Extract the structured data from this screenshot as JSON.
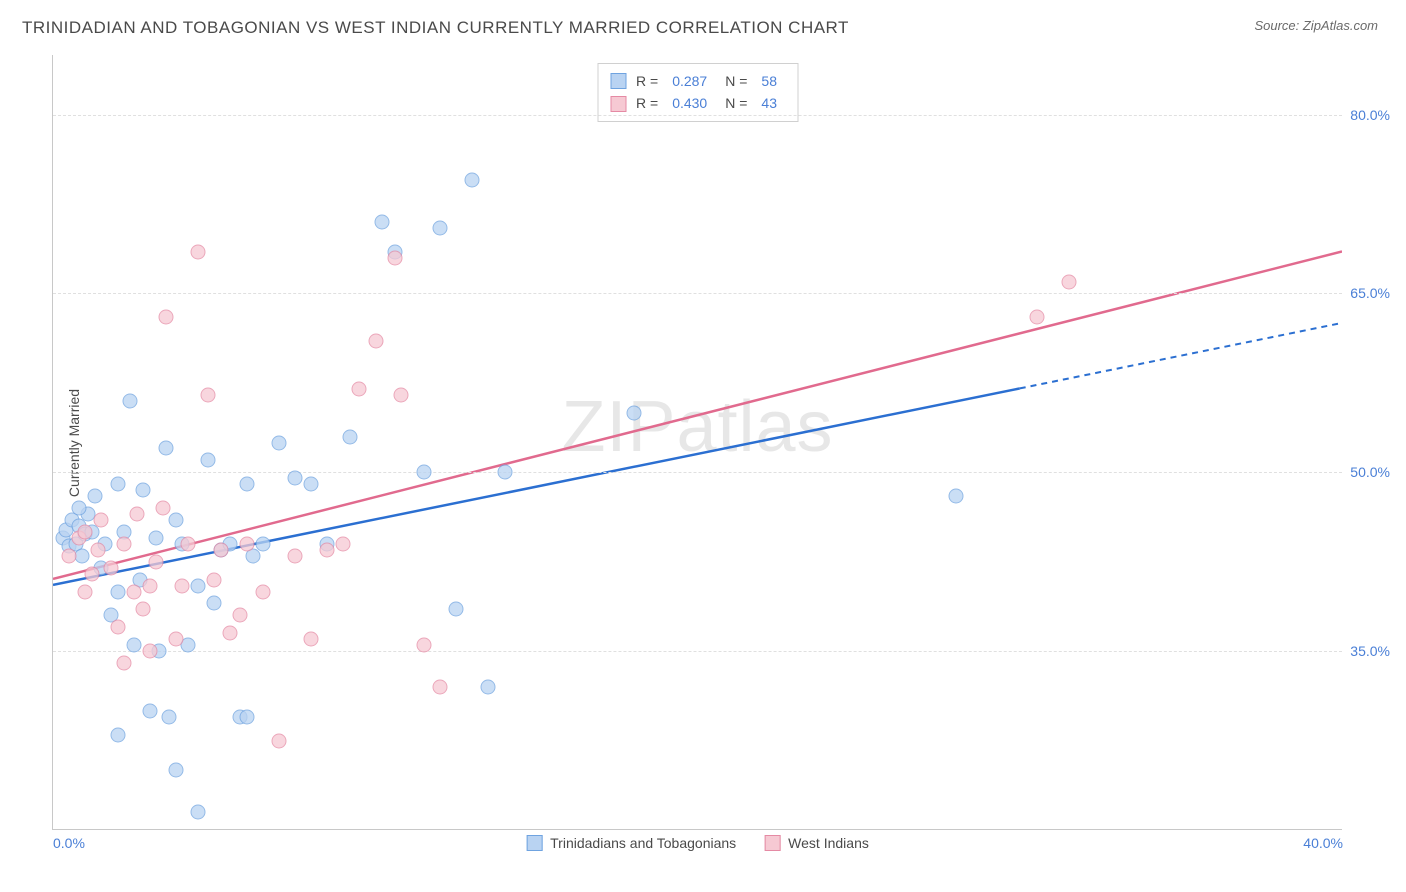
{
  "header": {
    "title": "TRINIDADIAN AND TOBAGONIAN VS WEST INDIAN CURRENTLY MARRIED CORRELATION CHART",
    "source": "Source: ZipAtlas.com"
  },
  "ylabel": "Currently Married",
  "watermark": "ZIPatlas",
  "chart": {
    "type": "scatter",
    "xlim": [
      0,
      40
    ],
    "ylim": [
      20,
      85
    ],
    "ytick_values": [
      35.0,
      50.0,
      65.0,
      80.0
    ],
    "ytick_labels": [
      "35.0%",
      "50.0%",
      "65.0%",
      "80.0%"
    ],
    "xtick_left": "0.0%",
    "xtick_right": "40.0%",
    "grid_color": "#e0e0e0",
    "background_color": "#ffffff",
    "axis_color": "#c8c8c8"
  },
  "series": [
    {
      "name": "Trinidadians and Tobagonians",
      "fill": "#b9d3f2",
      "stroke": "#6fa3e0",
      "line_color": "#2b6fd1",
      "r": 0.287,
      "n": 58,
      "trend": {
        "x1": 0,
        "y1": 40.5,
        "x2": 30,
        "y2": 57.0,
        "dash_x2": 40,
        "dash_y2": 62.5
      },
      "points": [
        [
          0.3,
          44.5
        ],
        [
          0.4,
          45.2
        ],
        [
          0.5,
          43.8
        ],
        [
          0.6,
          46.0
        ],
        [
          0.7,
          44.0
        ],
        [
          0.8,
          45.5
        ],
        [
          0.9,
          43.0
        ],
        [
          1.0,
          44.8
        ],
        [
          1.1,
          46.5
        ],
        [
          1.2,
          45.0
        ],
        [
          1.3,
          48.0
        ],
        [
          1.5,
          42.0
        ],
        [
          1.6,
          44.0
        ],
        [
          1.8,
          38.0
        ],
        [
          2.0,
          49.0
        ],
        [
          2.0,
          40.0
        ],
        [
          2.2,
          45.0
        ],
        [
          2.4,
          56.0
        ],
        [
          2.5,
          35.5
        ],
        [
          2.7,
          41.0
        ],
        [
          2.8,
          48.5
        ],
        [
          3.0,
          30.0
        ],
        [
          3.2,
          44.5
        ],
        [
          3.3,
          35.0
        ],
        [
          3.5,
          52.0
        ],
        [
          3.6,
          29.5
        ],
        [
          3.8,
          46.0
        ],
        [
          4.0,
          44.0
        ],
        [
          4.2,
          35.5
        ],
        [
          4.5,
          40.5
        ],
        [
          4.8,
          51.0
        ],
        [
          5.0,
          39.0
        ],
        [
          5.2,
          43.5
        ],
        [
          5.5,
          44.0
        ],
        [
          5.8,
          29.5
        ],
        [
          6.0,
          49.0
        ],
        [
          6.0,
          29.5
        ],
        [
          6.2,
          43.0
        ],
        [
          6.5,
          44.0
        ],
        [
          7.0,
          52.5
        ],
        [
          7.5,
          49.5
        ],
        [
          8.0,
          49.0
        ],
        [
          8.5,
          44.0
        ],
        [
          9.2,
          53.0
        ],
        [
          10.2,
          71.0
        ],
        [
          10.6,
          68.5
        ],
        [
          11.5,
          50.0
        ],
        [
          12.0,
          70.5
        ],
        [
          12.5,
          38.5
        ],
        [
          13.0,
          74.5
        ],
        [
          13.5,
          32.0
        ],
        [
          14.0,
          50.0
        ],
        [
          18.0,
          55.0
        ],
        [
          3.8,
          25.0
        ],
        [
          2.0,
          28.0
        ],
        [
          4.5,
          21.5
        ],
        [
          28.0,
          48.0
        ],
        [
          0.8,
          47.0
        ]
      ]
    },
    {
      "name": "West Indians",
      "fill": "#f6c9d3",
      "stroke": "#e58aa4",
      "line_color": "#e16a8e",
      "r": 0.43,
      "n": 43,
      "trend": {
        "x1": 0,
        "y1": 41.0,
        "x2": 40,
        "y2": 68.5
      },
      "points": [
        [
          0.5,
          43.0
        ],
        [
          0.8,
          44.5
        ],
        [
          1.0,
          45.0
        ],
        [
          1.2,
          41.5
        ],
        [
          1.4,
          43.5
        ],
        [
          1.5,
          46.0
        ],
        [
          1.8,
          42.0
        ],
        [
          2.0,
          37.0
        ],
        [
          2.2,
          44.0
        ],
        [
          2.5,
          40.0
        ],
        [
          2.6,
          46.5
        ],
        [
          2.8,
          38.5
        ],
        [
          3.0,
          35.0
        ],
        [
          3.2,
          42.5
        ],
        [
          3.4,
          47.0
        ],
        [
          3.5,
          63.0
        ],
        [
          3.8,
          36.0
        ],
        [
          4.0,
          40.5
        ],
        [
          4.2,
          44.0
        ],
        [
          4.5,
          68.5
        ],
        [
          4.8,
          56.5
        ],
        [
          5.0,
          41.0
        ],
        [
          5.2,
          43.5
        ],
        [
          5.5,
          36.5
        ],
        [
          5.8,
          38.0
        ],
        [
          6.0,
          44.0
        ],
        [
          6.5,
          40.0
        ],
        [
          7.0,
          27.5
        ],
        [
          7.5,
          43.0
        ],
        [
          8.0,
          36.0
        ],
        [
          8.5,
          43.5
        ],
        [
          9.0,
          44.0
        ],
        [
          9.5,
          57.0
        ],
        [
          10.0,
          61.0
        ],
        [
          10.6,
          68.0
        ],
        [
          10.8,
          56.5
        ],
        [
          11.5,
          35.5
        ],
        [
          12.0,
          32.0
        ],
        [
          30.5,
          63.0
        ],
        [
          31.5,
          66.0
        ],
        [
          1.0,
          40.0
        ],
        [
          2.2,
          34.0
        ],
        [
          3.0,
          40.5
        ]
      ]
    }
  ],
  "corr_legend": {
    "r_label": "R =",
    "n_label": "N ="
  },
  "bottom_legend": {
    "items": [
      "Trinidadians and Tobagonians",
      "West Indians"
    ]
  }
}
